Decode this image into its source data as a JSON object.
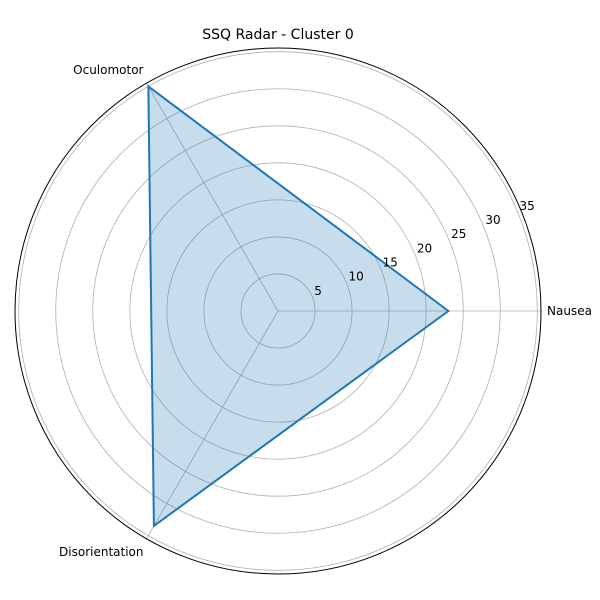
{
  "chart_data": {
    "type": "radar",
    "title": "SSQ Radar - Cluster 0",
    "categories": [
      "Nausea",
      "Oculomotor",
      "Disorientation"
    ],
    "series": [
      {
        "values": [
          23.0,
          35.0,
          33.5
        ]
      }
    ],
    "rlim": [
      0,
      35.5
    ],
    "r_ticks": [
      5,
      10,
      15,
      20,
      25,
      30,
      35
    ],
    "grid": true,
    "colors": {
      "line": "#1f77b4",
      "fill": "#1f77b4",
      "grid": "#b0b0b0",
      "frame": "#000000"
    }
  }
}
